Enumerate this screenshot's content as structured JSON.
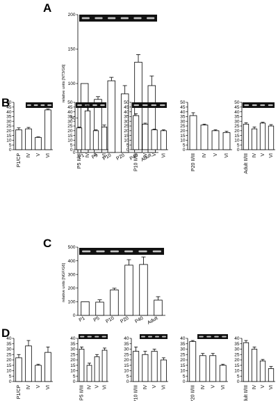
{
  "colors": {
    "gel_background": "#111111",
    "gel_band": "#dcdcdc",
    "bar_fill": "#ffffff",
    "axis": "#000000"
  },
  "chart_data": [
    {
      "panel": "A",
      "type": "bar",
      "ylabel": "relative units [NT3/G6]",
      "ylim": [
        0,
        200
      ],
      "yticks": [
        0,
        50,
        100,
        150,
        200
      ],
      "categories": [
        "P1",
        "P5",
        "P10",
        "P20",
        "P40",
        "Adult"
      ],
      "values": [
        100,
        77,
        104,
        85,
        131,
        97
      ],
      "errors": [
        0,
        4,
        5,
        12,
        11,
        14
      ],
      "gel_lanes": 6
    },
    {
      "panel": "B",
      "type": "bar",
      "subplots": [
        {
          "categories": [
            "P1/CP",
            "IV",
            "V",
            "VI"
          ],
          "values": [
            21,
            22,
            13,
            42
          ],
          "errors": [
            2,
            1.5,
            0.5,
            1
          ],
          "ylim": [
            0,
            50
          ],
          "yticks": [
            0,
            5,
            10,
            15,
            20,
            25,
            30,
            35,
            40,
            45,
            50
          ],
          "gel_lanes": 4
        },
        {
          "categories": [
            "P5 II/III",
            "IV",
            "V",
            "VI"
          ],
          "values": [
            23,
            41,
            20,
            24
          ],
          "errors": [
            1,
            6,
            1,
            2
          ],
          "ylim": [
            0,
            50
          ],
          "yticks": [
            0,
            5,
            10,
            15,
            20,
            25,
            30,
            35,
            40,
            45,
            50
          ],
          "gel_lanes": 4
        },
        {
          "categories": [
            "P10 II/III",
            "IV",
            "V",
            "VI"
          ],
          "values": [
            36,
            27,
            21,
            20
          ],
          "errors": [
            2,
            1,
            0.8,
            1
          ],
          "ylim": [
            0,
            50
          ],
          "yticks": [
            0,
            5,
            10,
            15,
            20,
            25,
            30,
            35,
            40,
            45,
            50
          ],
          "gel_lanes": 4
        },
        {
          "categories": [
            "P20 II/III",
            "IV",
            "V",
            "VI"
          ],
          "values": [
            36,
            26,
            20,
            18
          ],
          "errors": [
            3,
            1,
            1,
            1.5
          ],
          "ylim": [
            0,
            50
          ],
          "yticks": [
            0,
            5,
            10,
            15,
            20,
            25,
            30,
            35,
            40,
            45,
            50
          ],
          "gel_lanes": 0
        },
        {
          "categories": [
            "Adult II/III",
            "IV",
            "V",
            "VI"
          ],
          "values": [
            27,
            22,
            28,
            25
          ],
          "errors": [
            1.5,
            2,
            1,
            1.5
          ],
          "ylim": [
            0,
            50
          ],
          "yticks": [
            0,
            5,
            10,
            15,
            20,
            25,
            30,
            35,
            40,
            45,
            50
          ],
          "gel_lanes": 4
        }
      ]
    },
    {
      "panel": "C",
      "type": "bar",
      "ylabel": "relative units [NGF/G6]",
      "ylim": [
        0,
        500
      ],
      "yticks": [
        0,
        100,
        200,
        300,
        400,
        500
      ],
      "categories": [
        "P1",
        "P5",
        "P10",
        "P20",
        "P40",
        "Adult"
      ],
      "values": [
        100,
        97,
        187,
        368,
        373,
        112
      ],
      "errors": [
        0,
        17,
        12,
        40,
        55,
        25
      ],
      "gel_lanes": 6
    },
    {
      "panel": "D",
      "type": "bar",
      "subplots": [
        {
          "categories": [
            "P1/CP",
            "IV",
            "V",
            "VI"
          ],
          "values": [
            22,
            33,
            15,
            27
          ],
          "errors": [
            3,
            5,
            1,
            5
          ],
          "ylim": [
            0,
            40
          ],
          "yticks": [
            0,
            5,
            10,
            15,
            20,
            25,
            30,
            35,
            40
          ],
          "gel_lanes": 0
        },
        {
          "categories": [
            "P5 II/III",
            "IV",
            "V",
            "VI"
          ],
          "values": [
            30,
            15,
            23,
            29
          ],
          "errors": [
            2,
            2,
            2,
            2
          ],
          "ylim": [
            0,
            40
          ],
          "yticks": [
            0,
            5,
            10,
            15,
            20,
            25,
            30,
            35,
            40
          ],
          "gel_lanes": 4
        },
        {
          "categories": [
            "P10 II/III",
            "IV",
            "V",
            "VI"
          ],
          "values": [
            28,
            25,
            28,
            20
          ],
          "errors": [
            4,
            3,
            2,
            2
          ],
          "ylim": [
            0,
            40
          ],
          "yticks": [
            0,
            5,
            10,
            15,
            20,
            25,
            30,
            35,
            40
          ],
          "gel_lanes": 4
        },
        {
          "categories": [
            "P20 II/III",
            "IV",
            "V",
            "VI"
          ],
          "values": [
            37,
            24,
            24,
            15
          ],
          "errors": [
            1,
            2,
            2,
            1
          ],
          "ylim": [
            0,
            40
          ],
          "yticks": [
            0,
            5,
            10,
            15,
            20,
            25,
            30,
            35,
            40
          ],
          "gel_lanes": 4
        },
        {
          "categories": [
            "Adult II/III",
            "IV",
            "V",
            "VI"
          ],
          "values": [
            36,
            30,
            19,
            12
          ],
          "errors": [
            2,
            2,
            1.5,
            2
          ],
          "ylim": [
            0,
            40
          ],
          "yticks": [
            0,
            5,
            10,
            15,
            20,
            25,
            30,
            35,
            40
          ],
          "gel_lanes": 0
        }
      ]
    }
  ]
}
